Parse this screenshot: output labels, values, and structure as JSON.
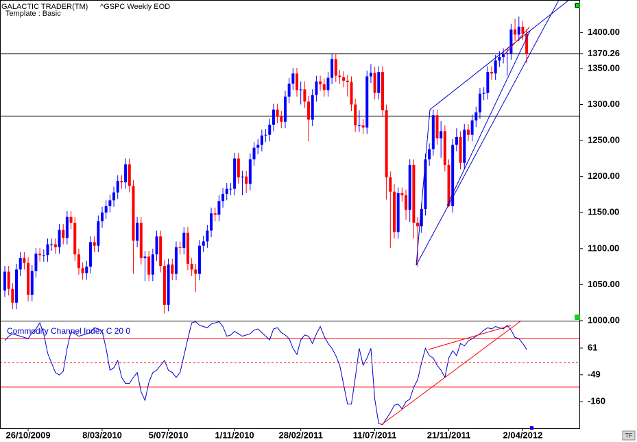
{
  "chart_data": [
    {
      "type": "candlestick",
      "title": "GALACTIC TRADER(TM)",
      "subtitle": "^GSPC Weekly EOD",
      "template": "Template : Basic",
      "up_color": "#0000ff",
      "down_color": "#ff0000",
      "open": [
        1042,
        1068,
        1044,
        1025,
        1071,
        1087,
        1080,
        1036,
        1069,
        1093,
        1091,
        1091,
        1106,
        1106,
        1102,
        1126,
        1115,
        1144,
        1136,
        1092,
        1073,
        1066,
        1075,
        1109,
        1104,
        1138,
        1150,
        1159,
        1167,
        1178,
        1194,
        1192,
        1217,
        1187,
        1111,
        1136,
        1087,
        1089,
        1064,
        1092,
        1117,
        1076,
        1022,
        1078,
        1065,
        1102,
        1101,
        1122,
        1079,
        1071,
        1065,
        1104,
        1110,
        1125,
        1149,
        1147,
        1166,
        1176,
        1183,
        1183,
        1225,
        1199,
        1200,
        1190,
        1224,
        1240,
        1244,
        1257,
        1258,
        1272,
        1293,
        1283,
        1276,
        1311,
        1329,
        1343,
        1320,
        1321,
        1304,
        1279,
        1313,
        1332,
        1328,
        1320,
        1337,
        1363,
        1340,
        1338,
        1333,
        1331,
        1300,
        1271,
        1271,
        1268,
        1339,
        1344,
        1316,
        1345,
        1292,
        1199,
        1179,
        1123,
        1177,
        1174,
        1154,
        1216,
        1136,
        1131,
        1155,
        1224,
        1238,
        1285,
        1253,
        1263,
        1216,
        1159,
        1244,
        1255,
        1219,
        1265,
        1258,
        1278,
        1289,
        1315,
        1316,
        1345,
        1343,
        1361,
        1366,
        1370,
        1371,
        1404,
        1397,
        1408,
        1398
      ],
      "high": [
        1076,
        1076,
        1052,
        1079,
        1095,
        1095,
        1088,
        1077,
        1101,
        1101,
        1099,
        1114,
        1114,
        1114,
        1134,
        1134,
        1152,
        1152,
        1144,
        1100,
        1081,
        1083,
        1117,
        1117,
        1146,
        1158,
        1167,
        1175,
        1186,
        1202,
        1202,
        1225,
        1225,
        1195,
        1144,
        1144,
        1097,
        1097,
        1100,
        1125,
        1125,
        1084,
        1086,
        1086,
        1110,
        1110,
        1130,
        1130,
        1087,
        1079,
        1112,
        1118,
        1133,
        1157,
        1157,
        1174,
        1184,
        1191,
        1191,
        1233,
        1233,
        1208,
        1208,
        1232,
        1248,
        1252,
        1265,
        1266,
        1280,
        1301,
        1301,
        1291,
        1319,
        1337,
        1351,
        1351,
        1332,
        1332,
        1312,
        1321,
        1340,
        1340,
        1336,
        1345,
        1371,
        1371,
        1348,
        1346,
        1341,
        1339,
        1308,
        1292,
        1280,
        1347,
        1356,
        1352,
        1353,
        1353,
        1300,
        1207,
        1190,
        1185,
        1185,
        1182,
        1224,
        1224,
        1144,
        1163,
        1232,
        1246,
        1293,
        1293,
        1277,
        1271,
        1224,
        1252,
        1267,
        1263,
        1273,
        1273,
        1286,
        1297,
        1323,
        1324,
        1353,
        1353,
        1369,
        1374,
        1378,
        1378,
        1412,
        1419,
        1422,
        1416,
        1405
      ],
      "low": [
        1033,
        1035,
        1016,
        1016,
        1062,
        1071,
        1027,
        1027,
        1060,
        1082,
        1082,
        1082,
        1097,
        1093,
        1093,
        1106,
        1106,
        1127,
        1083,
        1064,
        1057,
        1057,
        1066,
        1095,
        1095,
        1129,
        1141,
        1150,
        1158,
        1169,
        1183,
        1183,
        1178,
        1065,
        1102,
        1078,
        1055,
        1055,
        1055,
        1083,
        1067,
        1010,
        1013,
        1056,
        1056,
        1092,
        1092,
        1070,
        1062,
        1040,
        1056,
        1095,
        1101,
        1116,
        1138,
        1138,
        1157,
        1167,
        1174,
        1174,
        1190,
        1174,
        1177,
        1181,
        1215,
        1231,
        1235,
        1248,
        1249,
        1263,
        1274,
        1267,
        1267,
        1302,
        1320,
        1311,
        1300,
        1295,
        1249,
        1270,
        1304,
        1319,
        1311,
        1311,
        1328,
        1331,
        1329,
        1324,
        1311,
        1291,
        1262,
        1262,
        1259,
        1259,
        1330,
        1307,
        1307,
        1283,
        1168,
        1101,
        1114,
        1114,
        1165,
        1140,
        1137,
        1114,
        1075,
        1122,
        1146,
        1215,
        1229,
        1244,
        1226,
        1207,
        1158,
        1150,
        1235,
        1210,
        1210,
        1249,
        1249,
        1269,
        1280,
        1306,
        1307,
        1334,
        1334,
        1352,
        1357,
        1340,
        1362,
        1388,
        1388,
        1389,
        1357
      ],
      "close": [
        1068,
        1044,
        1025,
        1071,
        1087,
        1080,
        1036,
        1069,
        1093,
        1091,
        1091,
        1106,
        1106,
        1102,
        1126,
        1115,
        1144,
        1136,
        1092,
        1073,
        1066,
        1075,
        1109,
        1104,
        1138,
        1150,
        1159,
        1167,
        1178,
        1194,
        1192,
        1217,
        1187,
        1111,
        1136,
        1087,
        1089,
        1064,
        1092,
        1117,
        1076,
        1022,
        1078,
        1065,
        1102,
        1101,
        1122,
        1079,
        1071,
        1065,
        1104,
        1110,
        1125,
        1149,
        1147,
        1166,
        1176,
        1183,
        1183,
        1225,
        1199,
        1200,
        1190,
        1224,
        1240,
        1244,
        1257,
        1258,
        1272,
        1293,
        1283,
        1276,
        1311,
        1329,
        1343,
        1320,
        1321,
        1304,
        1279,
        1313,
        1332,
        1328,
        1320,
        1337,
        1363,
        1340,
        1338,
        1333,
        1331,
        1300,
        1271,
        1271,
        1268,
        1339,
        1344,
        1316,
        1345,
        1292,
        1199,
        1179,
        1123,
        1177,
        1174,
        1154,
        1216,
        1136,
        1131,
        1155,
        1224,
        1238,
        1285,
        1253,
        1263,
        1216,
        1159,
        1244,
        1255,
        1219,
        1265,
        1258,
        1278,
        1289,
        1315,
        1316,
        1345,
        1343,
        1361,
        1366,
        1370,
        1371,
        1404,
        1397,
        1408,
        1398,
        1370
      ],
      "ylim": [
        1000,
        1445
      ],
      "yticks": [
        {
          "value": 1000,
          "label": "1000.00"
        },
        {
          "value": 1050,
          "label": "1050.00"
        },
        {
          "value": 1100,
          "label": "1100.00"
        },
        {
          "value": 1150,
          "label": "1150.00"
        },
        {
          "value": 1200,
          "label": "1200.00"
        },
        {
          "value": 1250,
          "label": "1250.00"
        },
        {
          "value": 1300,
          "label": "1300.00"
        },
        {
          "value": 1350,
          "label": "1350.00"
        },
        {
          "value": 1400,
          "label": "1400.00"
        }
      ],
      "hlines": [
        1370.26,
        1284
      ],
      "hline_labels": [
        true,
        false
      ]
    },
    {
      "type": "line",
      "title": "Commodity Channel Index C 20 0",
      "color": "#0000cc",
      "values": [
        92,
        110,
        120,
        115,
        110,
        105,
        100,
        125,
        140,
        165,
        120,
        40,
        0,
        -40,
        -50,
        -35,
        60,
        130,
        120,
        110,
        115,
        120,
        125,
        145,
        140,
        130,
        60,
        -30,
        -20,
        10,
        -60,
        -85,
        -85,
        -60,
        -40,
        -120,
        -155,
        -80,
        -40,
        -30,
        -10,
        10,
        -30,
        -40,
        -60,
        -40,
        30,
        100,
        165,
        170,
        155,
        150,
        145,
        160,
        165,
        170,
        150,
        110,
        115,
        130,
        120,
        110,
        115,
        120,
        135,
        140,
        125,
        110,
        95,
        140,
        145,
        125,
        115,
        100,
        60,
        35,
        95,
        115,
        110,
        80,
        120,
        150,
        110,
        80,
        60,
        30,
        -10,
        -90,
        -170,
        -170,
        -60,
        60,
        -10,
        20,
        60,
        -150,
        -250,
        -255,
        -230,
        -205,
        -175,
        -170,
        -190,
        -160,
        -150,
        -100,
        -70,
        0,
        60,
        30,
        20,
        -10,
        -30,
        -60,
        20,
        50,
        30,
        80,
        70,
        90,
        100,
        110,
        120,
        135,
        145,
        140,
        150,
        145,
        140,
        155,
        135,
        105,
        100,
        80,
        55
      ],
      "ylim": [
        -270,
        174
      ],
      "yticks": [
        61,
        -49,
        -160
      ],
      "levels": [
        100,
        0,
        -100
      ],
      "level_color": "#ff0000",
      "xticks": [
        {
          "value": 6,
          "label": "26/10/2009"
        },
        {
          "value": 25,
          "label": "8/03/2010"
        },
        {
          "value": 42,
          "label": "5/07/2010"
        },
        {
          "value": 59,
          "label": "1/11/2010"
        },
        {
          "value": 76,
          "label": "28/02/2011"
        },
        {
          "value": 95,
          "label": "11/07/2011"
        },
        {
          "value": 114,
          "label": "21/11/2011"
        },
        {
          "value": 133,
          "label": "2/04/2012"
        }
      ]
    }
  ]
}
